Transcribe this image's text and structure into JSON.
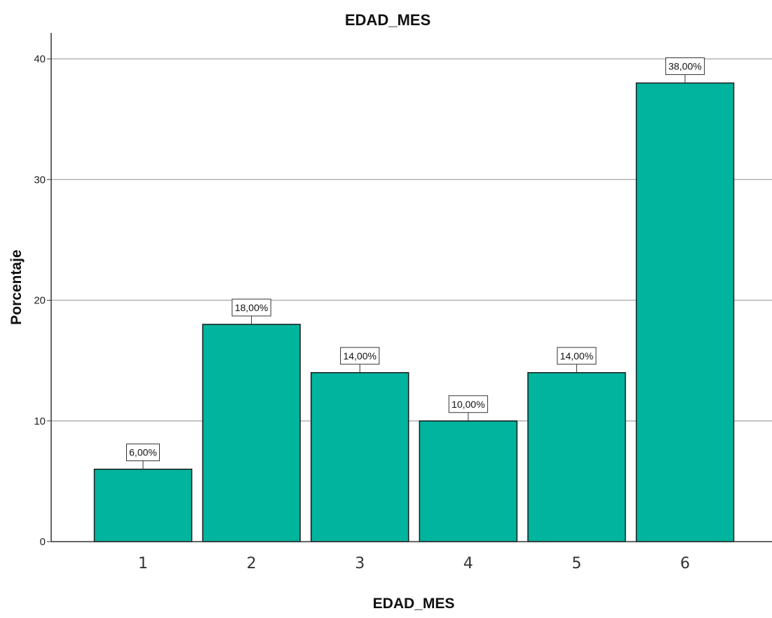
{
  "chart_data": {
    "type": "bar",
    "title": "EDAD_MES",
    "xlabel": "EDAD_MES",
    "ylabel": "Porcentaje",
    "categories": [
      "1",
      "2",
      "3",
      "4",
      "5",
      "6"
    ],
    "values": [
      6,
      18,
      14,
      10,
      14,
      38
    ],
    "data_labels": [
      "6,00%",
      "18,00%",
      "14,00%",
      "10,00%",
      "14,00%",
      "38,00%"
    ],
    "yticks": [
      "0",
      "10",
      "20",
      "30",
      "40"
    ],
    "ylim": [
      0,
      40
    ],
    "grid": true,
    "bar_color": "#00b49e",
    "bar_edge_color": "#1a1a1a",
    "grid_color": "#b3b3b3"
  }
}
